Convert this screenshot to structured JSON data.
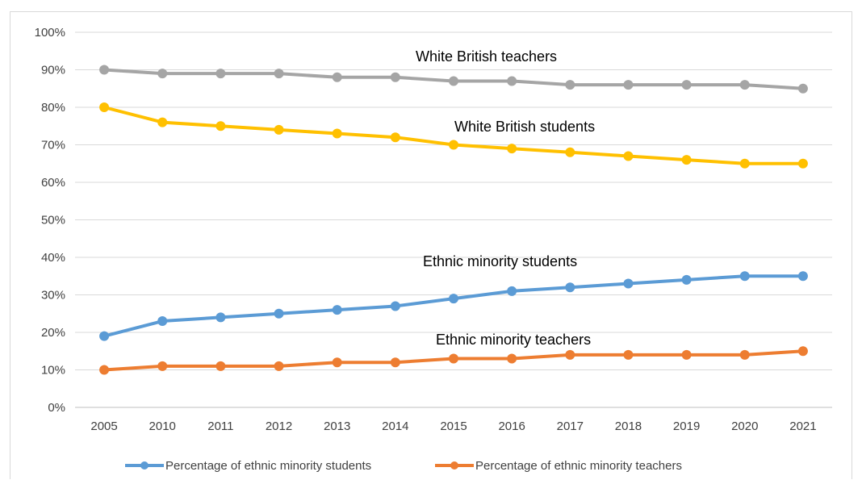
{
  "chart_data": {
    "type": "line",
    "title": "",
    "xlabel": "",
    "ylabel": "",
    "categories": [
      "2005",
      "2010",
      "2011",
      "2012",
      "2013",
      "2014",
      "2015",
      "2016",
      "2017",
      "2018",
      "2019",
      "2020",
      "2021"
    ],
    "ylim": [
      0,
      100
    ],
    "y_ticks": [
      0,
      10,
      20,
      30,
      40,
      50,
      60,
      70,
      80,
      90,
      100
    ],
    "y_tick_labels": [
      "0%",
      "10%",
      "20%",
      "30%",
      "40%",
      "50%",
      "60%",
      "70%",
      "80%",
      "90%",
      "100%"
    ],
    "grid": true,
    "legend_position": "bottom",
    "series": [
      {
        "key": "wbt",
        "values": [
          90,
          89,
          89,
          89,
          88,
          88,
          87,
          87,
          86,
          86,
          86,
          86,
          85
        ],
        "color": "#a5a5a5"
      },
      {
        "key": "wbs",
        "values": [
          80,
          76,
          75,
          74,
          73,
          72,
          70,
          69,
          68,
          67,
          66,
          65,
          65
        ],
        "color": "#ffc000"
      },
      {
        "key": "ems",
        "name": "Percentage of ethnic minority students",
        "values": [
          19,
          23,
          24,
          25,
          26,
          27,
          29,
          31,
          32,
          33,
          34,
          35,
          35
        ],
        "color": "#5b9bd5"
      },
      {
        "key": "emt",
        "name": "Percentage of ethnic minority teachers",
        "values": [
          10,
          11,
          11,
          11,
          12,
          12,
          13,
          13,
          14,
          14,
          14,
          14,
          15
        ],
        "color": "#ed7d31"
      }
    ],
    "annotations": [
      {
        "text": "White British teachers",
        "series": "wbt"
      },
      {
        "text": "White British students",
        "series": "wbs"
      },
      {
        "text": "Ethnic minority students",
        "series": "ems"
      },
      {
        "text": "Ethnic minority teachers",
        "series": "emt"
      }
    ],
    "legend": [
      {
        "label": "Percentage of ethnic minority students",
        "color": "#5b9bd5"
      },
      {
        "label": "Percentage of ethnic minority teachers",
        "color": "#ed7d31"
      }
    ]
  }
}
